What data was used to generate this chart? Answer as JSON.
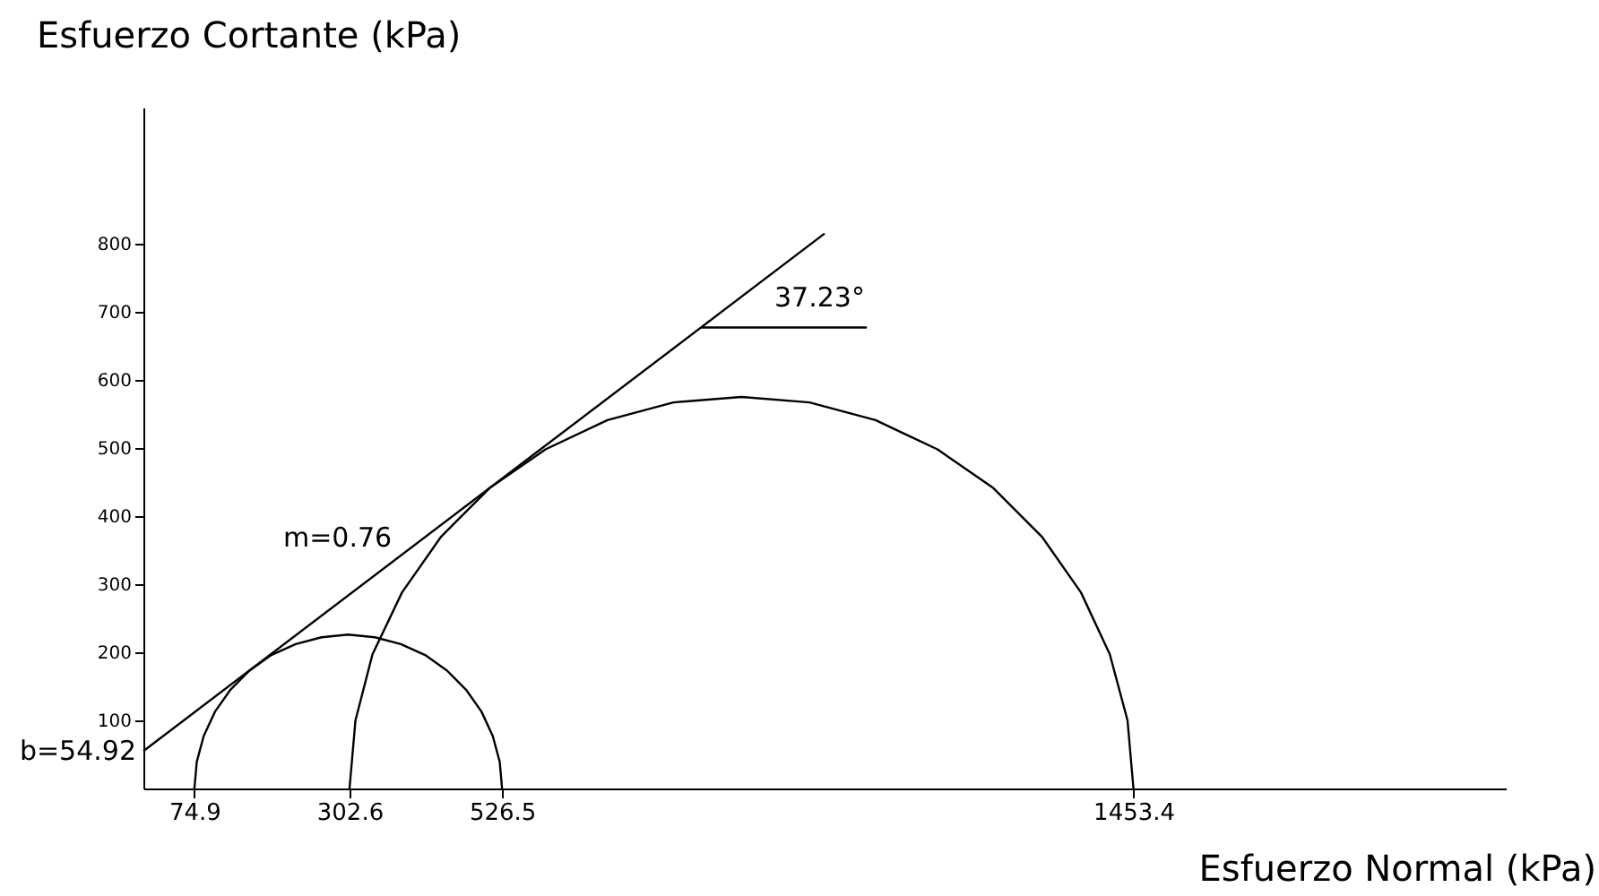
{
  "chart_data": {
    "type": "line",
    "xlabel": "Esfuerzo Normal (kPa)",
    "ylabel": "Esfuerzo Cortante (kPa)",
    "xlim": [
      0,
      2000
    ],
    "ylim": [
      0,
      1000
    ],
    "xticks": [
      74.9,
      302.6,
      526.5,
      1453.4
    ],
    "yticks": [
      100,
      200,
      300,
      400,
      500,
      600,
      700,
      800
    ],
    "grid": false,
    "legend": false,
    "marker": "none",
    "line_style": "solid",
    "series": [
      {
        "color": "#000000",
        "x": [
          526.5,
          523.1,
          512.9,
          496.2,
          473.7,
          445.8,
          413.6,
          377.9,
          339.9,
          300.7,
          261.5,
          223.5,
          187.8,
          155.6,
          127.7,
          105.2,
          88.5,
          78.3,
          74.9
        ],
        "values": [
          0,
          39,
          77,
          113,
          145,
          173,
          196,
          212,
          222,
          226,
          222,
          212,
          196,
          173,
          145,
          113,
          77,
          39,
          0
        ]
      },
      {
        "color": "#000000",
        "x": [
          1453.4,
          1444.7,
          1418.7,
          1376.3,
          1318.8,
          1247.9,
          1165.7,
          1074.8,
          977.9,
          878,
          778.1,
          681.2,
          590.3,
          508.1,
          437.2,
          379.7,
          336.3,
          311.3,
          302.6
        ],
        "values": [
          0,
          100,
          197,
          288,
          370,
          441,
          498,
          541,
          567,
          575,
          567,
          541,
          498,
          441,
          370,
          288,
          197,
          100,
          0
        ]
      },
      {
        "color": "#000000",
        "x": [
          0,
          1000
        ],
        "values": [
          55,
          815
        ]
      },
      {
        "color": "#000000",
        "x": [
          818.5,
          1062
        ],
        "values": [
          677,
          677
        ]
      }
    ],
    "annotations": [
      "m=0.76",
      "37.23°",
      {
        "text": "b=54.92",
        "x": 0,
        "y": 54.92
      }
    ]
  }
}
